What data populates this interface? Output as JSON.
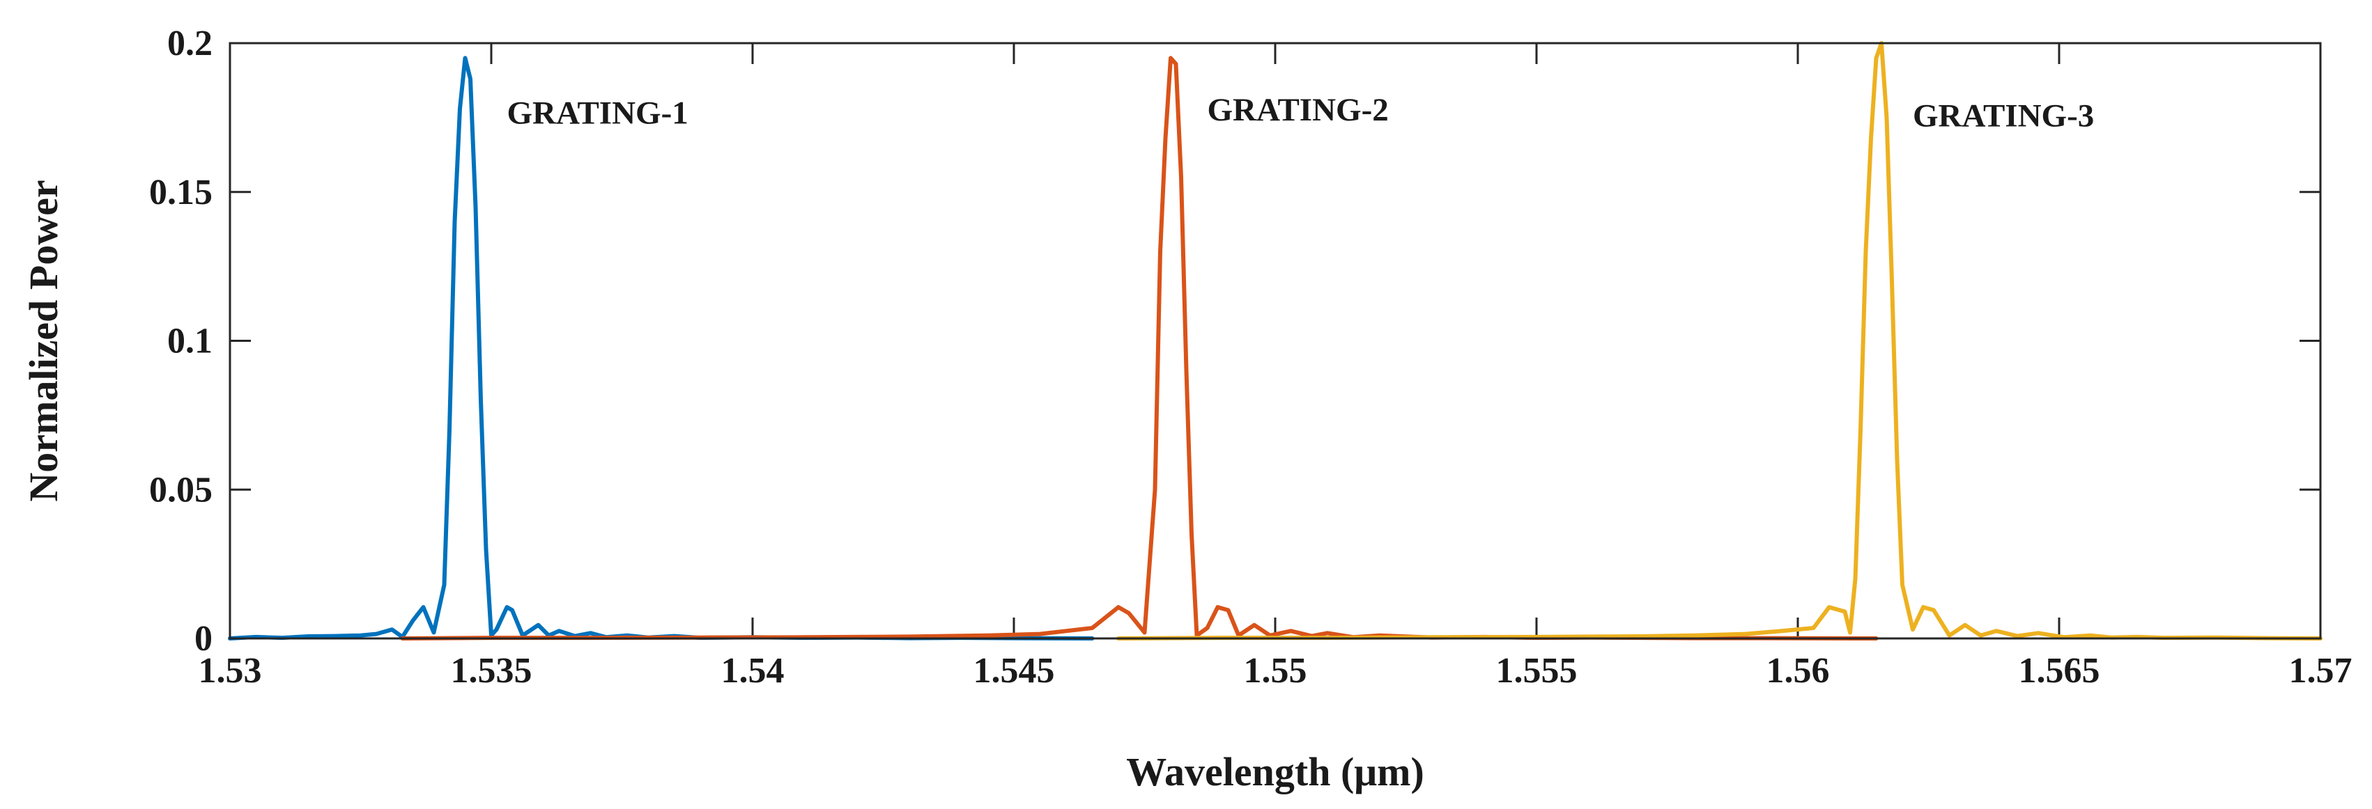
{
  "chart_data": {
    "type": "line",
    "title": "",
    "xlabel": "Wavelength (μm)",
    "ylabel": "Normalized Power",
    "xlim": [
      1.53,
      1.57
    ],
    "ylim": [
      0,
      0.2
    ],
    "grid": false,
    "x_ticks": [
      1.53,
      1.535,
      1.54,
      1.545,
      1.55,
      1.555,
      1.56,
      1.565,
      1.57
    ],
    "x_tick_labels": [
      "1.53",
      "1.535",
      "1.54",
      "1.545",
      "1.55",
      "1.555",
      "1.56",
      "1.565",
      "1.57"
    ],
    "y_ticks": [
      0,
      0.05,
      0.1,
      0.15,
      0.2
    ],
    "y_tick_labels": [
      "0",
      "0.05",
      "0.1",
      "0.15",
      "0.2"
    ],
    "series": [
      {
        "name": "GRATING-1",
        "color": "#0072bd",
        "x": [
          1.53,
          1.5305,
          1.531,
          1.5315,
          1.532,
          1.5325,
          1.5328,
          1.5331,
          1.5333,
          1.5335,
          1.5337,
          1.5339,
          1.5341,
          1.5342,
          1.5343,
          1.5344,
          1.5345,
          1.5346,
          1.5347,
          1.5348,
          1.5349,
          1.535,
          1.5351,
          1.5353,
          1.5354,
          1.5356,
          1.5359,
          1.5361,
          1.5363,
          1.5366,
          1.5369,
          1.5372,
          1.5376,
          1.538,
          1.5385,
          1.539,
          1.54,
          1.541,
          1.542,
          1.543,
          1.544,
          1.545,
          1.5465
        ],
        "y": [
          0,
          0.0005,
          0.0002,
          0.0007,
          0.0008,
          0.001,
          0.0015,
          0.003,
          0.0005,
          0.006,
          0.0105,
          0.002,
          0.018,
          0.07,
          0.14,
          0.178,
          0.195,
          0.188,
          0.145,
          0.08,
          0.03,
          0.001,
          0.003,
          0.0105,
          0.0095,
          0.001,
          0.0045,
          0.001,
          0.0025,
          0.0008,
          0.0018,
          0.0004,
          0.001,
          0.0003,
          0.0008,
          0.0002,
          0.0004,
          0.0002,
          0.0003,
          0.0001,
          0.0002,
          0.0001,
          0
        ]
      },
      {
        "name": "GRATING-2",
        "color": "#d95319",
        "x": [
          1.5333,
          1.535,
          1.537,
          1.539,
          1.541,
          1.543,
          1.5445,
          1.5455,
          1.546,
          1.5465,
          1.547,
          1.5472,
          1.5475,
          1.5477,
          1.5478,
          1.5479,
          1.548,
          1.5481,
          1.5482,
          1.5483,
          1.5484,
          1.5485,
          1.5487,
          1.5489,
          1.5491,
          1.5493,
          1.5496,
          1.5499,
          1.5503,
          1.5507,
          1.551,
          1.5515,
          1.552,
          1.553,
          1.554,
          1.555,
          1.556,
          1.557,
          1.558,
          1.559,
          1.5615
        ],
        "y": [
          0,
          0.0002,
          0.0002,
          0.0003,
          0.0004,
          0.0006,
          0.001,
          0.0015,
          0.0025,
          0.0035,
          0.0105,
          0.0085,
          0.002,
          0.05,
          0.13,
          0.168,
          0.195,
          0.193,
          0.155,
          0.09,
          0.035,
          0.001,
          0.0035,
          0.0105,
          0.0095,
          0.001,
          0.0045,
          0.001,
          0.0025,
          0.0008,
          0.0018,
          0.0004,
          0.001,
          0.0003,
          0.0005,
          0.0002,
          0.0003,
          0.0002,
          0.0001,
          0.0001,
          0
        ]
      },
      {
        "name": "GRATING-3",
        "color": "#edb120",
        "x": [
          1.547,
          1.549,
          1.551,
          1.553,
          1.555,
          1.557,
          1.558,
          1.559,
          1.5597,
          1.5603,
          1.5606,
          1.5609,
          1.561,
          1.5611,
          1.5612,
          1.5613,
          1.5614,
          1.5615,
          1.5616,
          1.5617,
          1.5618,
          1.5619,
          1.562,
          1.5622,
          1.5624,
          1.5626,
          1.5629,
          1.5632,
          1.5635,
          1.5638,
          1.5642,
          1.5646,
          1.5651,
          1.5656,
          1.566,
          1.5665,
          1.567,
          1.568,
          1.569,
          1.57
        ],
        "y": [
          0,
          0.0002,
          0.0002,
          0.0004,
          0.0005,
          0.0007,
          0.001,
          0.0015,
          0.0025,
          0.0035,
          0.0105,
          0.009,
          0.002,
          0.02,
          0.07,
          0.13,
          0.168,
          0.195,
          0.2,
          0.175,
          0.12,
          0.06,
          0.018,
          0.003,
          0.0105,
          0.0095,
          0.001,
          0.0045,
          0.001,
          0.0025,
          0.0008,
          0.0018,
          0.0004,
          0.001,
          0.0003,
          0.0005,
          0.0002,
          0.0003,
          0.0001,
          0
        ]
      }
    ],
    "annotations": [
      {
        "text": "GRATING-1",
        "x": 1.5353,
        "y": 0.173
      },
      {
        "text": "GRATING-2",
        "x": 1.5487,
        "y": 0.174
      },
      {
        "text": "GRATING-3",
        "x": 1.5622,
        "y": 0.172
      }
    ]
  }
}
